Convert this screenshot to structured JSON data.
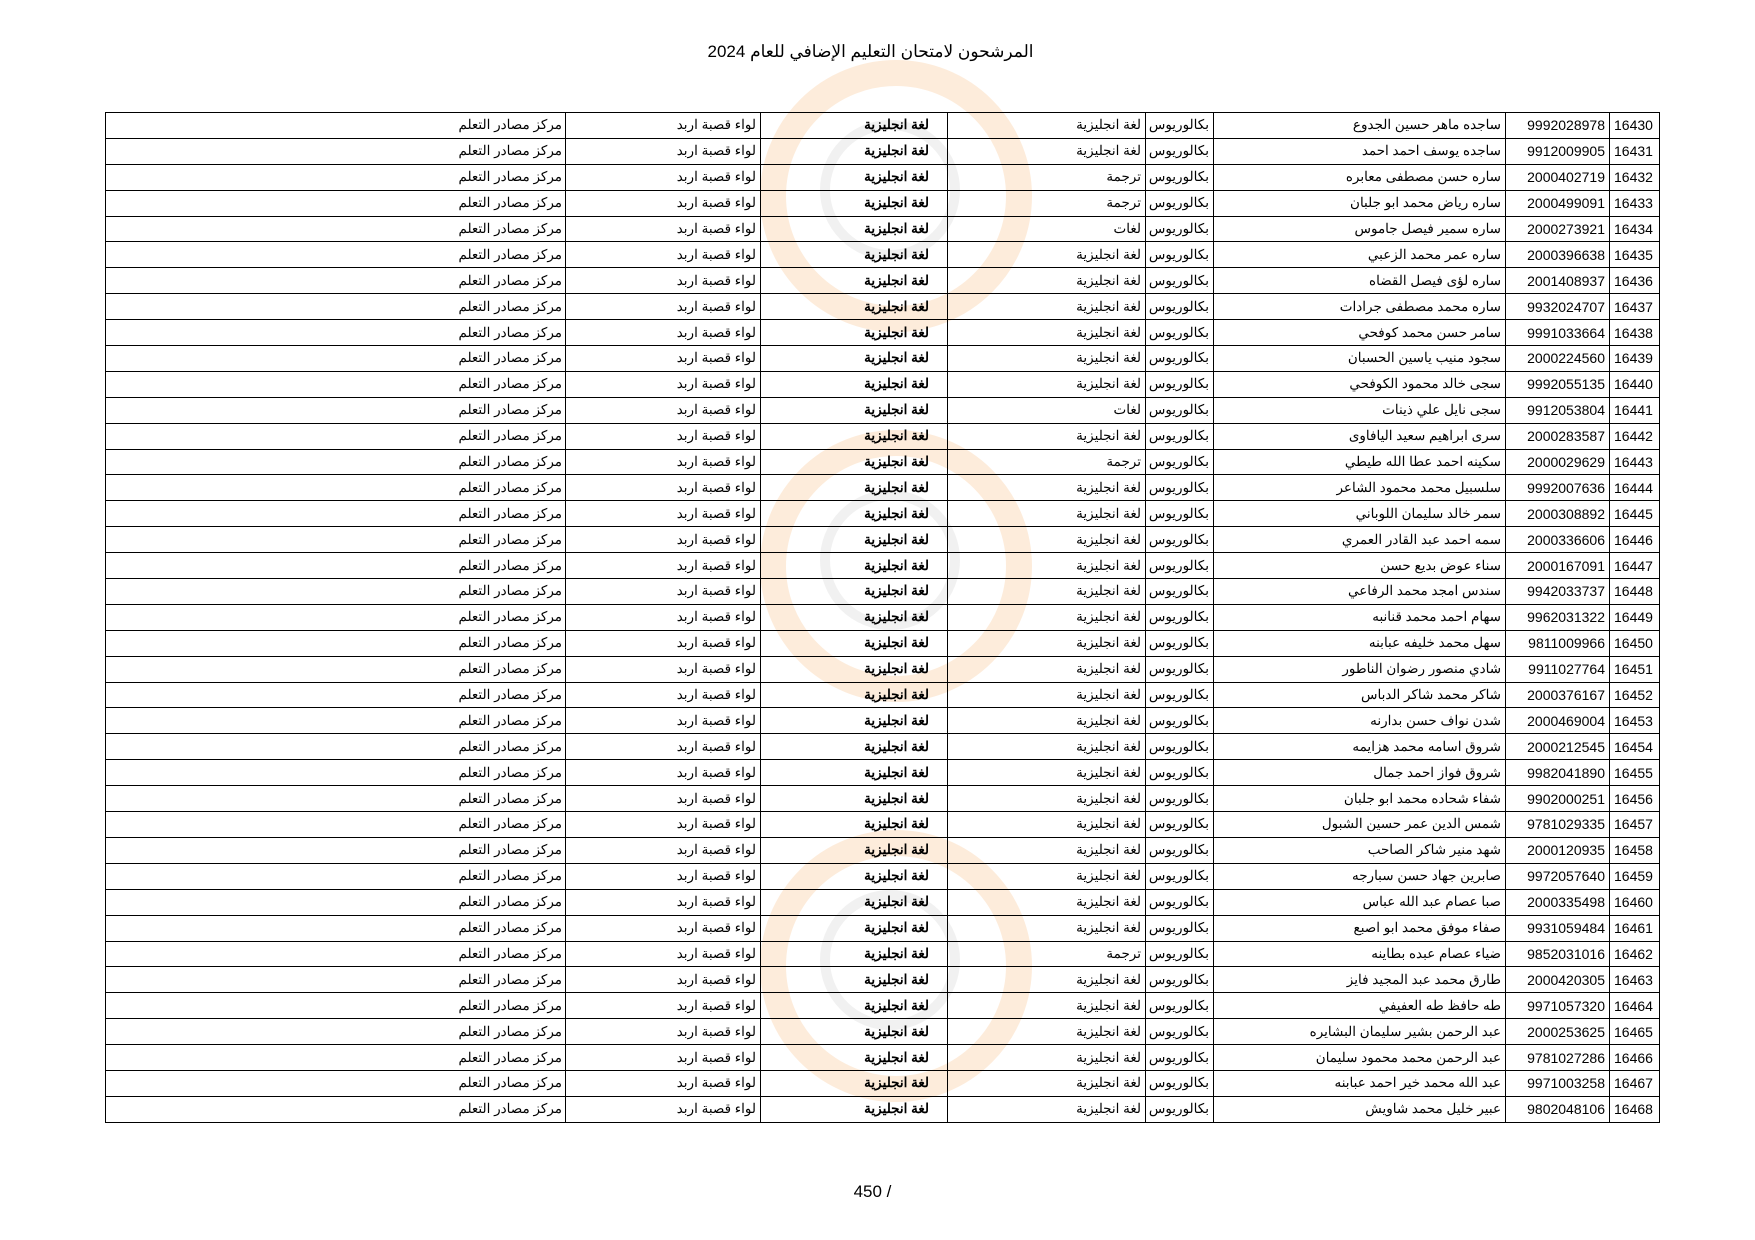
{
  "header": {
    "title": "المرشحون لامتحان التعليم الإضافي للعام 2024"
  },
  "footer": {
    "page_number": "450 /"
  },
  "colors": {
    "watermark_orange": "#f6aa5a",
    "watermark_gray": "#969696",
    "border": "#000000"
  },
  "rows": [
    {
      "num": "16430",
      "id": "9992028978",
      "name": "ساجده ماهر حسين الجدوع",
      "degree": "بكالوريوس",
      "major": "لغة انجليزية",
      "spec": "لغة انجليزية",
      "district": "لواء قصبة اربد",
      "center": "مركز مصادر التعلم"
    },
    {
      "num": "16431",
      "id": "9912009905",
      "name": "ساجده يوسف احمد احمد",
      "degree": "بكالوريوس",
      "major": "لغة انجليزية",
      "spec": "لغة انجليزية",
      "district": "لواء قصبة اربد",
      "center": "مركز مصادر التعلم"
    },
    {
      "num": "16432",
      "id": "2000402719",
      "name": "ساره حسن مصطفى معابره",
      "degree": "بكالوريوس",
      "major": "ترجمة",
      "spec": "لغة انجليزية",
      "district": "لواء قصبة اربد",
      "center": "مركز مصادر التعلم"
    },
    {
      "num": "16433",
      "id": "2000499091",
      "name": "ساره رياض محمد ابو جلبان",
      "degree": "بكالوريوس",
      "major": "ترجمة",
      "spec": "لغة انجليزية",
      "district": "لواء قصبة اربد",
      "center": "مركز مصادر التعلم"
    },
    {
      "num": "16434",
      "id": "2000273921",
      "name": "ساره سمير فيصل جاموس",
      "degree": "بكالوريوس",
      "major": "لغات",
      "spec": "لغة انجليزية",
      "district": "لواء قصبة اربد",
      "center": "مركز مصادر التعلم"
    },
    {
      "num": "16435",
      "id": "2000396638",
      "name": "ساره عمر محمد الزعبي",
      "degree": "بكالوريوس",
      "major": "لغة انجليزية",
      "spec": "لغة انجليزية",
      "district": "لواء قصبة اربد",
      "center": "مركز مصادر التعلم"
    },
    {
      "num": "16436",
      "id": "2001408937",
      "name": "ساره لؤى فيصل القضاه",
      "degree": "بكالوريوس",
      "major": "لغة انجليزية",
      "spec": "لغة انجليزية",
      "district": "لواء قصبة اربد",
      "center": "مركز مصادر التعلم"
    },
    {
      "num": "16437",
      "id": "9932024707",
      "name": "ساره محمد مصطفى جرادات",
      "degree": "بكالوريوس",
      "major": "لغة انجليزية",
      "spec": "لغة انجليزية",
      "district": "لواء قصبة اربد",
      "center": "مركز مصادر التعلم"
    },
    {
      "num": "16438",
      "id": "9991033664",
      "name": "سامر حسن محمد كوفحي",
      "degree": "بكالوريوس",
      "major": "لغة انجليزية",
      "spec": "لغة انجليزية",
      "district": "لواء قصبة اربد",
      "center": "مركز مصادر التعلم"
    },
    {
      "num": "16439",
      "id": "2000224560",
      "name": "سجود منيب ياسين الحسبان",
      "degree": "بكالوريوس",
      "major": "لغة انجليزية",
      "spec": "لغة انجليزية",
      "district": "لواء قصبة اربد",
      "center": "مركز مصادر التعلم"
    },
    {
      "num": "16440",
      "id": "9992055135",
      "name": "سجى خالد محمود الكوفحي",
      "degree": "بكالوريوس",
      "major": "لغة انجليزية",
      "spec": "لغة انجليزية",
      "district": "لواء قصبة اربد",
      "center": "مركز مصادر التعلم"
    },
    {
      "num": "16441",
      "id": "9912053804",
      "name": "سجى نايل علي ذينات",
      "degree": "بكالوريوس",
      "major": "لغات",
      "spec": "لغة انجليزية",
      "district": "لواء قصبة اربد",
      "center": "مركز مصادر التعلم"
    },
    {
      "num": "16442",
      "id": "2000283587",
      "name": "سرى ابراهيم سعيد اليافاوى",
      "degree": "بكالوريوس",
      "major": "لغة انجليزية",
      "spec": "لغة انجليزية",
      "district": "لواء قصبة اربد",
      "center": "مركز مصادر التعلم"
    },
    {
      "num": "16443",
      "id": "2000029629",
      "name": "سكينه احمد عطا الله طيطي",
      "degree": "بكالوريوس",
      "major": "ترجمة",
      "spec": "لغة انجليزية",
      "district": "لواء قصبة اربد",
      "center": "مركز مصادر التعلم"
    },
    {
      "num": "16444",
      "id": "9992007636",
      "name": "سلسبيل محمد محمود الشاعر",
      "degree": "بكالوريوس",
      "major": "لغة انجليزية",
      "spec": "لغة انجليزية",
      "district": "لواء قصبة اربد",
      "center": "مركز مصادر التعلم"
    },
    {
      "num": "16445",
      "id": "2000308892",
      "name": "سمر خالد سليمان اللوباني",
      "degree": "بكالوريوس",
      "major": "لغة انجليزية",
      "spec": "لغة انجليزية",
      "district": "لواء قصبة اربد",
      "center": "مركز مصادر التعلم"
    },
    {
      "num": "16446",
      "id": "2000336606",
      "name": "سمه احمد عبد القادر العمري",
      "degree": "بكالوريوس",
      "major": "لغة انجليزية",
      "spec": "لغة انجليزية",
      "district": "لواء قصبة اربد",
      "center": "مركز مصادر التعلم"
    },
    {
      "num": "16447",
      "id": "2000167091",
      "name": "سناء عوض بديع حسن",
      "degree": "بكالوريوس",
      "major": "لغة انجليزية",
      "spec": "لغة انجليزية",
      "district": "لواء قصبة اربد",
      "center": "مركز مصادر التعلم"
    },
    {
      "num": "16448",
      "id": "9942033737",
      "name": "سندس امجد محمد الرفاعي",
      "degree": "بكالوريوس",
      "major": "لغة انجليزية",
      "spec": "لغة انجليزية",
      "district": "لواء قصبة اربد",
      "center": "مركز مصادر التعلم"
    },
    {
      "num": "16449",
      "id": "9962031322",
      "name": "سهام احمد محمد قنانبه",
      "degree": "بكالوريوس",
      "major": "لغة انجليزية",
      "spec": "لغة انجليزية",
      "district": "لواء قصبة اربد",
      "center": "مركز مصادر التعلم"
    },
    {
      "num": "16450",
      "id": "9811009966",
      "name": "سهل محمد خليفه عبابنه",
      "degree": "بكالوريوس",
      "major": "لغة انجليزية",
      "spec": "لغة انجليزية",
      "district": "لواء قصبة اربد",
      "center": "مركز مصادر التعلم"
    },
    {
      "num": "16451",
      "id": "9911027764",
      "name": "شادي منصور رضوان الناطور",
      "degree": "بكالوريوس",
      "major": "لغة انجليزية",
      "spec": "لغة انجليزية",
      "district": "لواء قصبة اربد",
      "center": "مركز مصادر التعلم"
    },
    {
      "num": "16452",
      "id": "2000376167",
      "name": "شاكر محمد شاكر الدباس",
      "degree": "بكالوريوس",
      "major": "لغة انجليزية",
      "spec": "لغة انجليزية",
      "district": "لواء قصبة اربد",
      "center": "مركز مصادر التعلم"
    },
    {
      "num": "16453",
      "id": "2000469004",
      "name": "شدن نواف حسن بدارنه",
      "degree": "بكالوريوس",
      "major": "لغة انجليزية",
      "spec": "لغة انجليزية",
      "district": "لواء قصبة اربد",
      "center": "مركز مصادر التعلم"
    },
    {
      "num": "16454",
      "id": "2000212545",
      "name": "شروق اسامه محمد هزايمه",
      "degree": "بكالوريوس",
      "major": "لغة انجليزية",
      "spec": "لغة انجليزية",
      "district": "لواء قصبة اربد",
      "center": "مركز مصادر التعلم"
    },
    {
      "num": "16455",
      "id": "9982041890",
      "name": "شروق فواز احمد جمال",
      "degree": "بكالوريوس",
      "major": "لغة انجليزية",
      "spec": "لغة انجليزية",
      "district": "لواء قصبة اربد",
      "center": "مركز مصادر التعلم"
    },
    {
      "num": "16456",
      "id": "9902000251",
      "name": "شفاء شحاده محمد ابو جلبان",
      "degree": "بكالوريوس",
      "major": "لغة انجليزية",
      "spec": "لغة انجليزية",
      "district": "لواء قصبة اربد",
      "center": "مركز مصادر التعلم"
    },
    {
      "num": "16457",
      "id": "9781029335",
      "name": "شمس الدين عمر حسين الشبول",
      "degree": "بكالوريوس",
      "major": "لغة انجليزية",
      "spec": "لغة انجليزية",
      "district": "لواء قصبة اربد",
      "center": "مركز مصادر التعلم"
    },
    {
      "num": "16458",
      "id": "2000120935",
      "name": "شهد منير شاكر الصاحب",
      "degree": "بكالوريوس",
      "major": "لغة انجليزية",
      "spec": "لغة انجليزية",
      "district": "لواء قصبة اربد",
      "center": "مركز مصادر التعلم"
    },
    {
      "num": "16459",
      "id": "9972057640",
      "name": "صابرين جهاد حسن سبارجه",
      "degree": "بكالوريوس",
      "major": "لغة انجليزية",
      "spec": "لغة انجليزية",
      "district": "لواء قصبة اربد",
      "center": "مركز مصادر التعلم"
    },
    {
      "num": "16460",
      "id": "2000335498",
      "name": "صبا عصام عبد الله عباس",
      "degree": "بكالوريوس",
      "major": "لغة انجليزية",
      "spec": "لغة انجليزية",
      "district": "لواء قصبة اربد",
      "center": "مركز مصادر التعلم"
    },
    {
      "num": "16461",
      "id": "9931059484",
      "name": "صفاء موفق محمد ابو اصبع",
      "degree": "بكالوريوس",
      "major": "لغة انجليزية",
      "spec": "لغة انجليزية",
      "district": "لواء قصبة اربد",
      "center": "مركز مصادر التعلم"
    },
    {
      "num": "16462",
      "id": "9852031016",
      "name": "ضياء عصام عبده بطاينه",
      "degree": "بكالوريوس",
      "major": "ترجمة",
      "spec": "لغة انجليزية",
      "district": "لواء قصبة اربد",
      "center": "مركز مصادر التعلم"
    },
    {
      "num": "16463",
      "id": "2000420305",
      "name": "طارق محمد عبد المجيد فايز",
      "degree": "بكالوريوس",
      "major": "لغة انجليزية",
      "spec": "لغة انجليزية",
      "district": "لواء قصبة اربد",
      "center": "مركز مصادر التعلم"
    },
    {
      "num": "16464",
      "id": "9971057320",
      "name": "طه حافظ طه العفيفي",
      "degree": "بكالوريوس",
      "major": "لغة انجليزية",
      "spec": "لغة انجليزية",
      "district": "لواء قصبة اربد",
      "center": "مركز مصادر التعلم"
    },
    {
      "num": "16465",
      "id": "2000253625",
      "name": "عبد الرحمن بشير سليمان البشايره",
      "degree": "بكالوريوس",
      "major": "لغة انجليزية",
      "spec": "لغة انجليزية",
      "district": "لواء قصبة اربد",
      "center": "مركز مصادر التعلم"
    },
    {
      "num": "16466",
      "id": "9781027286",
      "name": "عبد الرحمن محمد محمود سليمان",
      "degree": "بكالوريوس",
      "major": "لغة انجليزية",
      "spec": "لغة انجليزية",
      "district": "لواء قصبة اربد",
      "center": "مركز مصادر التعلم"
    },
    {
      "num": "16467",
      "id": "9971003258",
      "name": "عبد الله محمد خير احمد عبابنه",
      "degree": "بكالوريوس",
      "major": "لغة انجليزية",
      "spec": "لغة انجليزية",
      "district": "لواء قصبة اربد",
      "center": "مركز مصادر التعلم"
    },
    {
      "num": "16468",
      "id": "9802048106",
      "name": "عبير خليل محمد شاويش",
      "degree": "بكالوريوس",
      "major": "لغة انجليزية",
      "spec": "لغة انجليزية",
      "district": "لواء قصبة اربد",
      "center": "مركز مصادر التعلم"
    }
  ]
}
